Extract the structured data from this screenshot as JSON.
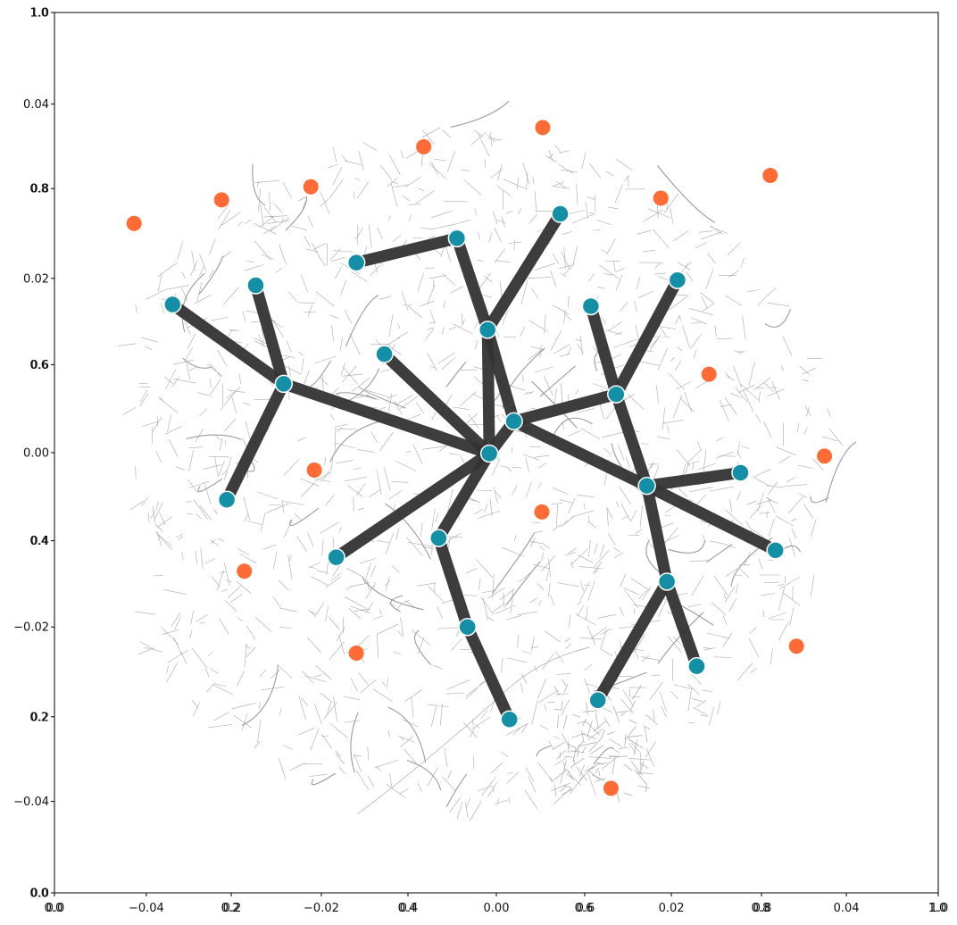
{
  "figure": {
    "primary_axis": {
      "x_ticks": [
        "−0.04",
        "−0.02",
        "0.00",
        "0.02",
        "0.04"
      ],
      "y_ticks": [
        "0.04",
        "0.02",
        "0.00",
        "−0.02",
        "−0.04"
      ],
      "x_range": [
        -0.0505,
        0.0505
      ],
      "y_range": [
        -0.0505,
        0.0505
      ]
    },
    "overlay_axis": {
      "x_ticks": [
        "0.0",
        "0.0",
        "0.2",
        "0.2",
        "0.4",
        "0.4",
        "0.6",
        "0.6",
        "0.8",
        "0.8",
        "1.0",
        "1.0"
      ],
      "y_ticks": [
        "1.0",
        "1.0",
        "0.8",
        "0.8",
        "0.6",
        "0.6",
        "0.4",
        "0.4",
        "0.2",
        "0.2",
        "0.0",
        "0.0"
      ]
    }
  },
  "chart_data": {
    "type": "scatter",
    "title": "",
    "xlabel": "",
    "ylabel": "",
    "xlim": [
      -0.0505,
      0.0505
    ],
    "ylim": [
      -0.0505,
      0.0505
    ],
    "grid": false,
    "colors": {
      "hub": "#138fa6",
      "demand": "#ff6b35",
      "edge": "#333333",
      "streets": "#a8a8a8"
    },
    "hubs": [
      {
        "x": -0.037,
        "y": 0.017
      },
      {
        "x": -0.0275,
        "y": 0.0192
      },
      {
        "x": -0.016,
        "y": 0.0218
      },
      {
        "x": -0.0045,
        "y": 0.0246
      },
      {
        "x": 0.0073,
        "y": 0.0274
      },
      {
        "x": -0.0243,
        "y": 0.0079
      },
      {
        "x": -0.0128,
        "y": 0.0113
      },
      {
        "x": -0.001,
        "y": 0.0141
      },
      {
        "x": 0.0108,
        "y": 0.0168
      },
      {
        "x": 0.0207,
        "y": 0.0198
      },
      {
        "x": -0.0008,
        "y": -0.0001
      },
      {
        "x": 0.002,
        "y": 0.0036
      },
      {
        "x": 0.0137,
        "y": 0.0067
      },
      {
        "x": -0.0308,
        "y": -0.0054
      },
      {
        "x": -0.0183,
        "y": -0.012
      },
      {
        "x": -0.0066,
        "y": -0.0098
      },
      {
        "x": 0.0172,
        "y": -0.0038
      },
      {
        "x": 0.0279,
        "y": -0.0023
      },
      {
        "x": 0.0319,
        "y": -0.0112
      },
      {
        "x": -0.0033,
        "y": -0.02
      },
      {
        "x": 0.0195,
        "y": -0.0148
      },
      {
        "x": 0.0015,
        "y": -0.0306
      },
      {
        "x": 0.0116,
        "y": -0.0284
      },
      {
        "x": 0.0229,
        "y": -0.0245
      }
    ],
    "links": [
      [
        0,
        5
      ],
      [
        1,
        5
      ],
      [
        5,
        10
      ],
      [
        5,
        13
      ],
      [
        6,
        10
      ],
      [
        2,
        3
      ],
      [
        3,
        7
      ],
      [
        4,
        7
      ],
      [
        7,
        10
      ],
      [
        7,
        11
      ],
      [
        11,
        10
      ],
      [
        11,
        12
      ],
      [
        11,
        16
      ],
      [
        8,
        12
      ],
      [
        9,
        12
      ],
      [
        12,
        16
      ],
      [
        16,
        17
      ],
      [
        16,
        18
      ],
      [
        16,
        20
      ],
      [
        10,
        14
      ],
      [
        10,
        15
      ],
      [
        15,
        19
      ],
      [
        19,
        21
      ],
      [
        20,
        22
      ],
      [
        20,
        23
      ]
    ],
    "demand_points": [
      {
        "x": -0.0414,
        "y": 0.0263
      },
      {
        "x": -0.0314,
        "y": 0.029
      },
      {
        "x": -0.0212,
        "y": 0.0305
      },
      {
        "x": -0.0083,
        "y": 0.0351
      },
      {
        "x": 0.0053,
        "y": 0.0373
      },
      {
        "x": 0.0188,
        "y": 0.0292
      },
      {
        "x": 0.0313,
        "y": 0.0318
      },
      {
        "x": 0.0243,
        "y": 0.009
      },
      {
        "x": 0.0375,
        "y": -0.0004
      },
      {
        "x": -0.0208,
        "y": -0.002
      },
      {
        "x": 0.0052,
        "y": -0.0068
      },
      {
        "x": -0.0288,
        "y": -0.0136
      },
      {
        "x": -0.016,
        "y": -0.023
      },
      {
        "x": 0.0343,
        "y": -0.0222
      },
      {
        "x": 0.0131,
        "y": -0.0385
      }
    ]
  }
}
